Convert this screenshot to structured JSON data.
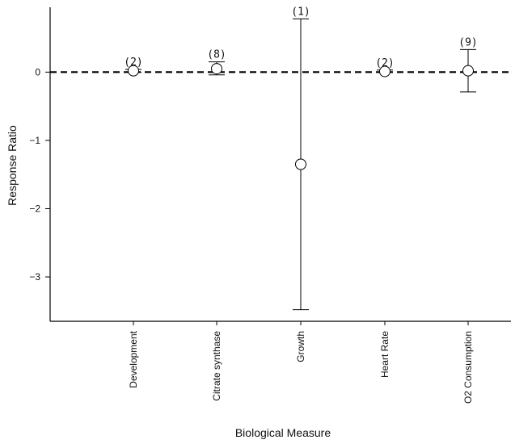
{
  "chart_data": {
    "type": "scatter",
    "xlabel": "Biological Measure",
    "ylabel": "Response Ratio",
    "ylim": [
      -3.65,
      0.95
    ],
    "yticks": [
      0,
      -1,
      -2,
      -3
    ],
    "ytick_labels": [
      "0",
      "−1",
      "−2",
      "−3"
    ],
    "reference_line": 0,
    "reference_line_style": "dashed",
    "grid": false,
    "legend": "none",
    "categories": [
      "Development",
      "Citrate synthase",
      "Growth",
      "Heart Rate",
      "O2 Consumption"
    ],
    "points": [
      {
        "category": "Development",
        "value": 0.02,
        "lower": 0.0,
        "upper": 0.04,
        "n": 2,
        "n_label": "(2)"
      },
      {
        "category": "Citrate synthase",
        "value": 0.05,
        "lower": -0.04,
        "upper": 0.15,
        "n": 8,
        "n_label": "(8)"
      },
      {
        "category": "Growth",
        "value": -1.35,
        "lower": -3.48,
        "upper": 0.78,
        "n": 1,
        "n_label": "(1)"
      },
      {
        "category": "Heart Rate",
        "value": 0.01,
        "lower": 0.0,
        "upper": 0.03,
        "n": 2,
        "n_label": "(2)"
      },
      {
        "category": "O2 Consumption",
        "value": 0.02,
        "lower": -0.29,
        "upper": 0.33,
        "n": 9,
        "n_label": "(9)"
      }
    ]
  }
}
